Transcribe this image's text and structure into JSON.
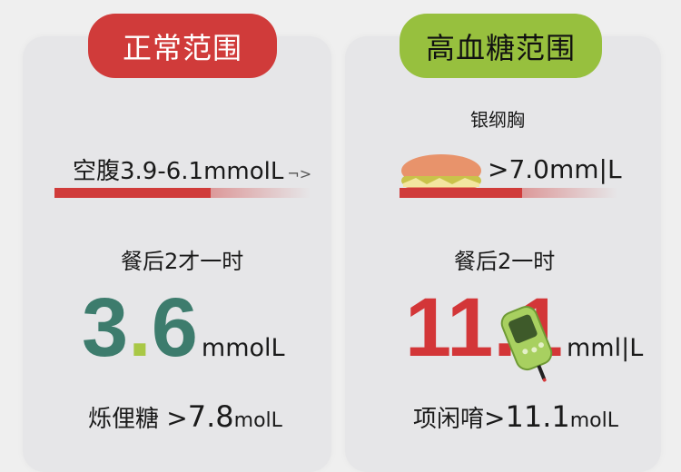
{
  "colors": {
    "normal": "#d03b3a",
    "high": "#97c03e",
    "teal": "#3d7c6d",
    "dot": "#a9c846",
    "red_value": "#d33638"
  },
  "left": {
    "badge": "正常范围",
    "fasting": "空腹3.9-6.1mmolL",
    "arrow": "¬>",
    "postmeal": "餐后2才一时",
    "value_int": "3",
    "value_dot": ".",
    "value_dec": "6",
    "value_unit": "mmolL",
    "bottom_label": "烁俚糖",
    "bottom_cmp": ">",
    "bottom_value": "7.8",
    "bottom_unit": "molL"
  },
  "right": {
    "badge": "高血糖范围",
    "subtitle": "银纲胸",
    "fasting": ">7.0mm|L",
    "postmeal": "餐后2一时",
    "value_int": "11",
    "value_dot": ".",
    "value_dec": "1",
    "value_unit": "mml|L",
    "bottom_label": "项闲唷",
    "bottom_cmp": ">",
    "bottom_value": "11.1",
    "bottom_unit": "molL"
  },
  "icons": {
    "food": "hamburger-icon",
    "device": "glucose-meter-icon"
  }
}
